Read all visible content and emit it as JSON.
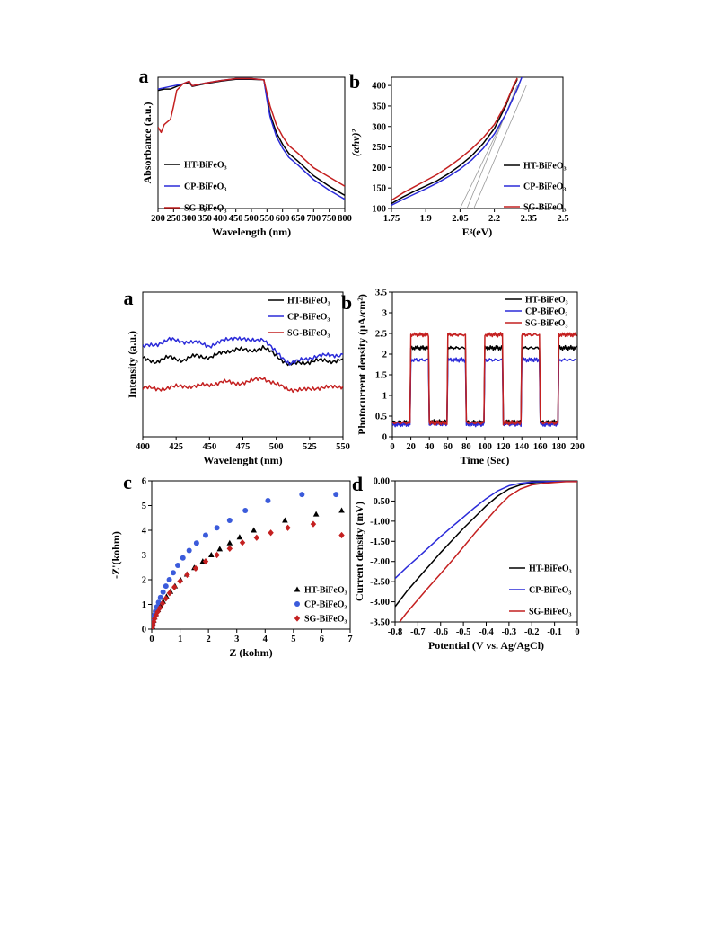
{
  "chart_data": [
    {
      "id": "uv",
      "type": "line",
      "panel_label": "a",
      "xlabel": "Wavelength (nm)",
      "ylabel": "Absorbance (a.u.)",
      "xlim": [
        200,
        800
      ],
      "ylim": [
        0,
        1
      ],
      "xticks": [
        200,
        250,
        300,
        350,
        400,
        450,
        500,
        550,
        600,
        650,
        700,
        750,
        800
      ],
      "legend_position": "bottom-left",
      "series": [
        {
          "name": "HT-BiFeO₃",
          "color": "#000000",
          "x": [
            200,
            220,
            240,
            260,
            280,
            300,
            310,
            350,
            400,
            450,
            500,
            540,
            550,
            560,
            580,
            600,
            620,
            650,
            700,
            750,
            800
          ],
          "y": [
            0.9,
            0.91,
            0.91,
            0.93,
            0.95,
            0.96,
            0.93,
            0.95,
            0.97,
            0.985,
            0.985,
            0.98,
            0.85,
            0.72,
            0.58,
            0.49,
            0.42,
            0.36,
            0.25,
            0.17,
            0.1
          ]
        },
        {
          "name": "CP-BiFeO₃",
          "color": "#2b2bd9",
          "x": [
            200,
            220,
            240,
            260,
            280,
            300,
            310,
            350,
            400,
            450,
            500,
            540,
            550,
            560,
            580,
            600,
            620,
            650,
            700,
            750,
            800
          ],
          "y": [
            0.91,
            0.92,
            0.93,
            0.94,
            0.95,
            0.97,
            0.935,
            0.955,
            0.975,
            0.99,
            0.99,
            0.98,
            0.83,
            0.7,
            0.55,
            0.46,
            0.39,
            0.33,
            0.22,
            0.14,
            0.07
          ]
        },
        {
          "name": "SG-BiFeO₃",
          "color": "#c42020",
          "x": [
            200,
            210,
            220,
            240,
            250,
            260,
            280,
            300,
            310,
            350,
            400,
            450,
            500,
            540,
            550,
            560,
            580,
            600,
            620,
            650,
            700,
            750,
            800
          ],
          "y": [
            0.62,
            0.58,
            0.64,
            0.68,
            0.78,
            0.9,
            0.95,
            0.97,
            0.935,
            0.955,
            0.975,
            0.99,
            0.99,
            0.98,
            0.88,
            0.78,
            0.64,
            0.55,
            0.48,
            0.42,
            0.31,
            0.24,
            0.17
          ]
        }
      ]
    },
    {
      "id": "tauc",
      "type": "line",
      "panel_label": "b",
      "xlabel": "Eᵍ(eV)",
      "ylabel": "(αhν)²",
      "xlim": [
        1.75,
        2.5
      ],
      "ylim": [
        100,
        420
      ],
      "xticks": [
        1.75,
        1.9,
        2.05,
        2.2,
        2.35,
        2.5
      ],
      "xtick_labels": [
        "1.75",
        "1.9",
        "2.05",
        "2.2",
        "2.35",
        "2.5"
      ],
      "yticks": [
        100,
        150,
        200,
        250,
        300,
        350,
        400
      ],
      "legend_position": "bottom-right",
      "series": [
        {
          "name": "HT-BiFeO₃",
          "color": "#000000",
          "x": [
            1.75,
            1.8,
            1.85,
            1.9,
            1.95,
            2.0,
            2.05,
            2.1,
            2.15,
            2.2,
            2.25,
            2.27,
            2.3
          ],
          "y": [
            112,
            128,
            142,
            155,
            168,
            185,
            205,
            228,
            258,
            295,
            350,
            380,
            415
          ]
        },
        {
          "name": "CP-BiFeO₃",
          "color": "#2b2bd9",
          "x": [
            1.75,
            1.8,
            1.85,
            1.9,
            1.95,
            2.0,
            2.05,
            2.1,
            2.15,
            2.2,
            2.25,
            2.3,
            2.32
          ],
          "y": [
            108,
            122,
            135,
            148,
            162,
            178,
            196,
            218,
            246,
            282,
            330,
            392,
            420
          ]
        },
        {
          "name": "SG-BiFeO₃",
          "color": "#c42020",
          "x": [
            1.75,
            1.8,
            1.85,
            1.9,
            1.95,
            2.0,
            2.05,
            2.1,
            2.15,
            2.2,
            2.25,
            2.28,
            2.3
          ],
          "y": [
            120,
            138,
            153,
            168,
            183,
            202,
            222,
            245,
            272,
            305,
            355,
            395,
            418
          ]
        }
      ],
      "tangents": [
        {
          "x": [
            2.05,
            2.31
          ],
          "y": [
            100,
            400
          ]
        },
        {
          "x": [
            2.08,
            2.3
          ],
          "y": [
            100,
            400
          ]
        },
        {
          "x": [
            2.11,
            2.34
          ],
          "y": [
            100,
            400
          ]
        }
      ]
    },
    {
      "id": "pl",
      "type": "line",
      "panel_label": "a",
      "xlabel": "Wavelenght (nm)",
      "ylabel": "Intensity (a.u.)",
      "xlim": [
        400,
        550
      ],
      "ylim": [
        0,
        1
      ],
      "xticks": [
        400,
        425,
        450,
        475,
        500,
        525,
        550
      ],
      "legend_position": "top-right",
      "series": [
        {
          "name": "HT-BiFeO₃",
          "color": "#000000",
          "x": [
            400,
            410,
            420,
            430,
            440,
            450,
            460,
            470,
            480,
            490,
            500,
            510,
            520,
            530,
            540,
            550
          ],
          "y": [
            0.54,
            0.52,
            0.55,
            0.53,
            0.56,
            0.55,
            0.58,
            0.61,
            0.59,
            0.62,
            0.56,
            0.5,
            0.51,
            0.53,
            0.52,
            0.54
          ]
        },
        {
          "name": "CP-BiFeO₃",
          "color": "#2b2bd9",
          "x": [
            400,
            410,
            420,
            430,
            440,
            450,
            460,
            470,
            480,
            490,
            500,
            510,
            520,
            530,
            540,
            550
          ],
          "y": [
            0.62,
            0.64,
            0.67,
            0.66,
            0.65,
            0.63,
            0.66,
            0.69,
            0.66,
            0.68,
            0.58,
            0.51,
            0.53,
            0.56,
            0.56,
            0.57
          ]
        },
        {
          "name": "SG-BiFeO₃",
          "color": "#c42020",
          "x": [
            400,
            410,
            420,
            430,
            440,
            450,
            460,
            470,
            480,
            490,
            500,
            510,
            520,
            530,
            540,
            550
          ],
          "y": [
            0.34,
            0.33,
            0.34,
            0.35,
            0.35,
            0.36,
            0.38,
            0.37,
            0.38,
            0.41,
            0.36,
            0.33,
            0.32,
            0.34,
            0.34,
            0.35
          ]
        }
      ]
    },
    {
      "id": "photocurrent",
      "type": "line",
      "panel_label": "b",
      "xlabel": "Time (Sec)",
      "ylabel": "Photocurrent density (μA/cm²)",
      "xlim": [
        0,
        200
      ],
      "ylim": [
        0,
        3.5
      ],
      "xticks": [
        0,
        20,
        40,
        60,
        80,
        100,
        120,
        140,
        160,
        180,
        200
      ],
      "yticks": [
        0,
        0.5,
        1,
        1.5,
        2,
        2.5,
        3,
        3.5
      ],
      "legend_position": "top-right",
      "light_on": [
        [
          20,
          40
        ],
        [
          60,
          80
        ],
        [
          100,
          120
        ],
        [
          140,
          160
        ],
        [
          180,
          200
        ]
      ],
      "series": [
        {
          "name": "HT-BiFeO₃",
          "color": "#000000",
          "dark": 0.36,
          "light": 2.15
        },
        {
          "name": "CP-BiFeO₃",
          "color": "#2b2bd9",
          "dark": 0.3,
          "light": 1.86
        },
        {
          "name": "SG-BiFeO₃",
          "color": "#c42020",
          "dark": 0.34,
          "light": 2.47
        }
      ]
    },
    {
      "id": "eis",
      "type": "scatter",
      "panel_label": "c",
      "xlabel": "Z (kohm)",
      "ylabel": "-Z'(kohm)",
      "xlim": [
        0,
        7
      ],
      "ylim": [
        0,
        6
      ],
      "xticks": [
        0,
        1,
        2,
        3,
        4,
        5,
        6,
        7
      ],
      "yticks": [
        0,
        1,
        2,
        3,
        4,
        5,
        6
      ],
      "legend_position": "bottom-right",
      "series": [
        {
          "name": "HT-BiFeO₃",
          "color": "#000000",
          "marker": "triangle",
          "x": [
            0.02,
            0.04,
            0.07,
            0.1,
            0.15,
            0.22,
            0.3,
            0.4,
            0.52,
            0.66,
            0.82,
            1.02,
            1.24,
            1.5,
            1.8,
            2.1,
            2.4,
            2.75,
            3.1,
            3.6,
            4.7,
            5.8,
            6.7
          ],
          "y": [
            0.1,
            0.22,
            0.35,
            0.48,
            0.62,
            0.78,
            0.95,
            1.12,
            1.32,
            1.52,
            1.74,
            1.98,
            2.22,
            2.48,
            2.74,
            3.0,
            3.24,
            3.48,
            3.72,
            4.0,
            4.4,
            4.65,
            4.8
          ]
        },
        {
          "name": "CP-BiFeO₃",
          "color": "#3b5bdb",
          "marker": "circle",
          "x": [
            0.02,
            0.04,
            0.06,
            0.09,
            0.13,
            0.18,
            0.24,
            0.31,
            0.4,
            0.5,
            0.62,
            0.76,
            0.92,
            1.1,
            1.32,
            1.58,
            1.9,
            2.3,
            2.75,
            3.3,
            4.1,
            5.3,
            6.5
          ],
          "y": [
            0.12,
            0.26,
            0.4,
            0.56,
            0.72,
            0.9,
            1.08,
            1.28,
            1.5,
            1.74,
            2.0,
            2.28,
            2.58,
            2.88,
            3.18,
            3.48,
            3.8,
            4.1,
            4.4,
            4.8,
            5.2,
            5.45,
            5.45
          ]
        },
        {
          "name": "SG-BiFeO₃",
          "color": "#c42020",
          "marker": "diamond",
          "x": [
            0.02,
            0.04,
            0.07,
            0.1,
            0.15,
            0.21,
            0.29,
            0.38,
            0.5,
            0.63,
            0.8,
            1.0,
            1.25,
            1.55,
            1.9,
            2.3,
            2.75,
            3.2,
            3.7,
            4.2,
            4.8,
            5.7,
            6.7
          ],
          "y": [
            0.08,
            0.18,
            0.3,
            0.42,
            0.56,
            0.7,
            0.86,
            1.04,
            1.24,
            1.46,
            1.7,
            1.94,
            2.2,
            2.46,
            2.74,
            3.0,
            3.26,
            3.5,
            3.7,
            3.9,
            4.1,
            4.25,
            3.8
          ]
        }
      ]
    },
    {
      "id": "lsv",
      "type": "line",
      "panel_label": "d",
      "xlabel": "Potential (V vs. Ag/AgCl)",
      "ylabel": "Current density (mV)",
      "xlim": [
        -0.8,
        0
      ],
      "ylim": [
        -3.5,
        0
      ],
      "xticks": [
        -0.8,
        -0.7,
        -0.6,
        -0.5,
        -0.4,
        -0.3,
        -0.2,
        -0.1,
        0
      ],
      "yticks": [
        0,
        -0.5,
        -1,
        -1.5,
        -2,
        -2.5,
        -3,
        -3.5
      ],
      "ytick_labels": [
        "0.00",
        "-0.50",
        "-1.00",
        "-1.50",
        "-2.00",
        "-2.50",
        "-3.00",
        "-3.50"
      ],
      "legend_position": "bottom-right",
      "series": [
        {
          "name": "HT-BiFeO₃",
          "color": "#000000",
          "x": [
            -0.8,
            -0.75,
            -0.7,
            -0.65,
            -0.6,
            -0.55,
            -0.5,
            -0.45,
            -0.4,
            -0.35,
            -0.3,
            -0.25,
            -0.2,
            -0.15,
            -0.1,
            -0.05,
            0
          ],
          "y": [
            -3.12,
            -2.75,
            -2.42,
            -2.1,
            -1.78,
            -1.48,
            -1.18,
            -0.9,
            -0.62,
            -0.38,
            -0.2,
            -0.1,
            -0.05,
            -0.03,
            -0.02,
            -0.01,
            -0.01
          ]
        },
        {
          "name": "CP-BiFeO₃",
          "color": "#2b2bd9",
          "x": [
            -0.8,
            -0.75,
            -0.7,
            -0.65,
            -0.6,
            -0.55,
            -0.5,
            -0.45,
            -0.4,
            -0.35,
            -0.3,
            -0.25,
            -0.2,
            -0.15,
            -0.1,
            -0.05,
            0
          ],
          "y": [
            -2.42,
            -2.15,
            -1.9,
            -1.64,
            -1.38,
            -1.14,
            -0.9,
            -0.66,
            -0.44,
            -0.25,
            -0.12,
            -0.06,
            -0.03,
            -0.02,
            -0.01,
            -0.01,
            -0.01
          ]
        },
        {
          "name": "SG-BiFeO₃",
          "color": "#c42020",
          "x": [
            -0.78,
            -0.75,
            -0.7,
            -0.65,
            -0.6,
            -0.55,
            -0.5,
            -0.45,
            -0.4,
            -0.35,
            -0.3,
            -0.25,
            -0.2,
            -0.15,
            -0.1,
            -0.05,
            0
          ],
          "y": [
            -3.5,
            -3.28,
            -2.95,
            -2.62,
            -2.3,
            -1.98,
            -1.64,
            -1.3,
            -0.98,
            -0.66,
            -0.38,
            -0.2,
            -0.1,
            -0.06,
            -0.04,
            -0.02,
            -0.02
          ]
        }
      ]
    }
  ]
}
